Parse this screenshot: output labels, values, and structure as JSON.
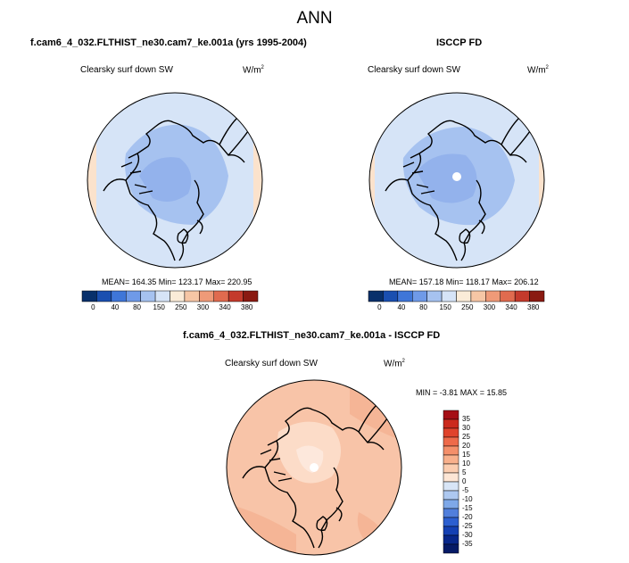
{
  "page_title": "ANN",
  "panels": [
    {
      "title": "f.cam6_4_032.FLTHIST_ne30.cam7_ke.001a (yrs 1995-2004)",
      "variable": "Clearsky surf down SW",
      "units": "W/m",
      "units_sup": "2",
      "stats": "MEAN= 164.35   Min= 123.17   Max= 220.95"
    },
    {
      "title": "ISCCP FD",
      "variable": "Clearsky surf down SW",
      "units": "W/m",
      "units_sup": "2",
      "stats": "MEAN= 157.18   Min= 118.17   Max= 206.12"
    },
    {
      "title": "f.cam6_4_032.FLTHIST_ne30.cam7_ke.001a - ISCCP FD",
      "variable": "Clearsky surf down SW",
      "units": "W/m",
      "units_sup": "2",
      "stats": "MIN =  -3.81  MAX =  15.85"
    }
  ],
  "colorbar_abs": {
    "labels": [
      "0",
      "40",
      "80",
      "150",
      "250",
      "300",
      "340",
      "380"
    ],
    "colors": [
      "#08306b",
      "#1a4fb0",
      "#3f76d8",
      "#6f9ae8",
      "#a6c2f0",
      "#d6e4f7",
      "#fbecd8",
      "#f6c6a5",
      "#ef9a78",
      "#e06b4f",
      "#c43a2c",
      "#8a1a12"
    ]
  },
  "colorbar_diff": {
    "labels": [
      "35",
      "30",
      "25",
      "20",
      "15",
      "10",
      "5",
      "0",
      "-5",
      "-10",
      "-15",
      "-20",
      "-25",
      "-30",
      "-35"
    ],
    "colors": [
      "#a50f15",
      "#cb2a1d",
      "#e0432c",
      "#ee6a4a",
      "#f48f6a",
      "#f8b08c",
      "#fbcdb0",
      "#fde6d5",
      "#d8e5f6",
      "#adc8f0",
      "#7ea8e8",
      "#517fdc",
      "#2c5fd0",
      "#1440b3",
      "#08278a",
      "#061a66"
    ]
  },
  "chart_data": {
    "type": "heatmap",
    "projection": "north polar stereographic",
    "maps": [
      {
        "name": "f.cam6_4_032.FLTHIST_ne30.cam7_ke.001a (yrs 1995-2004)",
        "mean": 164.35,
        "min": 123.17,
        "max": 220.95
      },
      {
        "name": "ISCCP FD",
        "mean": 157.18,
        "min": 118.17,
        "max": 206.12
      },
      {
        "name": "f.cam6_4_032.FLTHIST_ne30.cam7_ke.001a - ISCCP FD",
        "min": -3.81,
        "max": 15.85
      }
    ]
  }
}
